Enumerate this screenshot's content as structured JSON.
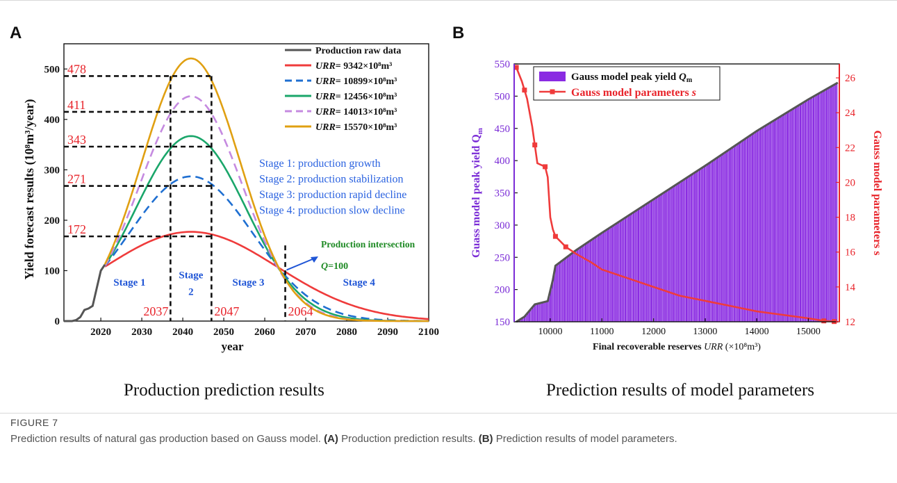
{
  "figure": {
    "label": "FIGURE 7",
    "caption_lead": "Prediction results of natural gas production based on Gauss model. ",
    "caption_a_tag": "(A)",
    "caption_a_text": " Production prediction results. ",
    "caption_b_tag": "(B)",
    "caption_b_text": " Prediction results of model parameters."
  },
  "panel_a": {
    "letter": "A",
    "subcaption": "Production prediction results",
    "chart_data": {
      "type": "line",
      "xlabel": "year",
      "ylabel": "Yield forecast results (10⁸m³/year)",
      "xlim": [
        2011,
        2100
      ],
      "ylim": [
        0,
        550
      ],
      "x_ticks": [
        2020,
        2030,
        2040,
        2050,
        2060,
        2070,
        2080,
        2090,
        2100
      ],
      "y_ticks": [
        0,
        100,
        200,
        300,
        400,
        500
      ],
      "legend_position": "top-right",
      "raw_data": {
        "name": "Production raw data",
        "color": "#555555",
        "x": [
          2011,
          2013,
          2014,
          2015,
          2016,
          2017,
          2018,
          2019,
          2020,
          2021
        ],
        "y": [
          0,
          0,
          2,
          8,
          22,
          25,
          30,
          65,
          100,
          112
        ]
      },
      "series": [
        {
          "name_prefix": "URR",
          "name_suffix": "= 9342×10⁸m³",
          "color": "#ef3b3b",
          "dash": "solid",
          "peak": 177,
          "mu": 2042,
          "sigma": 21.1
        },
        {
          "name_prefix": "URR",
          "name_suffix": "= 10899×10⁸m³",
          "color": "#1f6fd1",
          "dash": "dash",
          "peak": 287,
          "mu": 2042,
          "sigma": 15.1
        },
        {
          "name_prefix": "URR",
          "name_suffix": "= 12456×10⁸m³",
          "color": "#1aa66a",
          "dash": "solid",
          "peak": 367,
          "mu": 2042,
          "sigma": 13.5
        },
        {
          "name_prefix": "URR",
          "name_suffix": "= 14013×10⁸m³",
          "color": "#c58ae0",
          "dash": "dash",
          "peak": 446,
          "mu": 2042,
          "sigma": 12.5
        },
        {
          "name_prefix": "URR",
          "name_suffix": "= 15570×10⁸m³",
          "color": "#e0a012",
          "dash": "solid",
          "peak": 521,
          "mu": 2042,
          "sigma": 12.0
        }
      ],
      "reference_levels": [
        {
          "label": "478",
          "y": 486,
          "x_end": 2047
        },
        {
          "label": "411",
          "y": 415,
          "x_end": 2047
        },
        {
          "label": "343",
          "y": 346,
          "x_end": 2047
        },
        {
          "label": "271",
          "y": 268,
          "x_end": 2047
        },
        {
          "label": "172",
          "y": 168,
          "x_end": 2047
        }
      ],
      "vertical_markers": [
        {
          "label": "2037",
          "x": 2037,
          "y_top": 486
        },
        {
          "label": "2047",
          "x": 2047,
          "y_top": 486
        },
        {
          "label": "2064",
          "x": 2065,
          "y_top": 150
        }
      ],
      "stages": [
        {
          "label": "Stage 1",
          "x": 2027,
          "y": 70
        },
        {
          "label": "Stage",
          "label2": "2",
          "x": 2042,
          "y": 85
        },
        {
          "label": "Stage 3",
          "x": 2056,
          "y": 70
        },
        {
          "label": "Stage 4",
          "x": 2083,
          "y": 70
        }
      ],
      "stage_notes": [
        "Stage 1: production growth",
        "Stage 2: production stabilization",
        "Stage 3: production rapid decline",
        "Stage 4: production slow decline"
      ],
      "intersection": {
        "title": "Production intersection",
        "label_var": "Q",
        "label_val": "=100",
        "x": 2065,
        "y": 100
      }
    }
  },
  "panel_b": {
    "letter": "B",
    "subcaption": "Prediction results of model parameters",
    "chart_data": {
      "type": "bar",
      "xlabel_prefix": "Final recoverable reserves ",
      "xlabel_var": "URR",
      "xlabel_unit": " (×10⁸m³)",
      "ylabel_left": "Guass model peak yield Q",
      "ylabel_left_sub": "m",
      "ylabel_right": "Gauss model parameters s",
      "xlim": [
        9300,
        15600
      ],
      "ylim_left": [
        150,
        550
      ],
      "ylim_right": [
        12,
        26.8
      ],
      "x_ticks": [
        10000,
        11000,
        12000,
        13000,
        14000,
        15000
      ],
      "y_left_ticks": [
        150,
        200,
        250,
        300,
        350,
        400,
        450,
        500,
        550
      ],
      "y_right_ticks": [
        12,
        14,
        16,
        18,
        20,
        22,
        24,
        26
      ],
      "legend_position": "top-left",
      "bar_series": {
        "name": "Gauss model peak yield",
        "name_var": "Q",
        "name_sub": "m",
        "color": "#8a2be2",
        "x": [
          9342,
          9500,
          9700,
          9950,
          10050,
          10100,
          10500,
          11000,
          12000,
          13000,
          14000,
          15000,
          15570
        ],
        "y": [
          150,
          158,
          177,
          182,
          215,
          237,
          261,
          288,
          340,
          392,
          446,
          495,
          521
        ]
      },
      "line_series": {
        "name": "Gauss model parameters ",
        "name_var": "s",
        "color": "#ef3b3b",
        "x": [
          9342,
          9450,
          9550,
          9650,
          9750,
          9900,
          9950,
          10000,
          10050,
          10100,
          10200,
          10300,
          10500,
          10800,
          11000,
          11500,
          12000,
          12500,
          13000,
          13500,
          14000,
          14500,
          15000,
          15300,
          15570
        ],
        "y": [
          26.6,
          25.8,
          24.8,
          23.2,
          21.1,
          20.9,
          20.3,
          18.0,
          17.3,
          16.9,
          16.6,
          16.3,
          15.9,
          15.4,
          15.0,
          14.5,
          14.0,
          13.5,
          13.2,
          12.9,
          12.6,
          12.4,
          12.2,
          12.05,
          12.0
        ],
        "marker_x": [
          9342,
          9500,
          9700,
          9900,
          10100,
          10300,
          15300,
          15500
        ]
      }
    }
  }
}
